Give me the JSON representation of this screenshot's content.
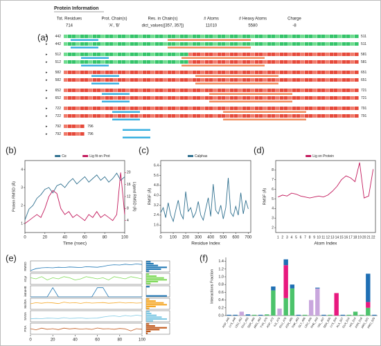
{
  "protein_info": {
    "title": "Protein Information",
    "columns": [
      "Tot. Residues",
      "Prot. Chain(s)",
      "Res. in Chain(s)",
      "# Atoms",
      "# Heavy Atoms",
      "Charge"
    ],
    "values": [
      "714",
      "'A', 'B'",
      "dict_values([357, 357])",
      "11010",
      "5580",
      "-8"
    ],
    "row_start": [
      442,
      512,
      582,
      652,
      722,
      792
    ],
    "row_end": [
      511,
      581,
      651,
      721,
      791,
      796
    ]
  },
  "panel_labels": [
    "(a)",
    "(b)",
    "(c)",
    "(d)",
    "(e)",
    "(f)"
  ],
  "chart_data": [
    {
      "type": "line",
      "xlabel": "Time (nsec)",
      "ylabel": "Protein RMSD (Å)",
      "y2label": "Ligand RMSD (Å)",
      "x": [
        0,
        4,
        8,
        12,
        16,
        20,
        24,
        28,
        32,
        36,
        40,
        44,
        48,
        52,
        56,
        60,
        64,
        68,
        72,
        76,
        80,
        84,
        88,
        92,
        96,
        100
      ],
      "xlim": [
        0,
        100
      ],
      "xticks": [
        0,
        20,
        40,
        60,
        80,
        100
      ],
      "ylim": [
        0.5,
        4.5
      ],
      "yticks": [
        1,
        2,
        3,
        4
      ],
      "y2lim": [
        0,
        24
      ],
      "y2ticks": [
        4,
        8,
        12,
        16,
        20
      ],
      "series": [
        {
          "name": "Cα",
          "color": "#2e6f8e",
          "values": [
            1.2,
            1.8,
            2.0,
            2.4,
            2.6,
            2.9,
            3.0,
            2.7,
            3.1,
            3.2,
            3.0,
            3.3,
            3.5,
            3.2,
            3.4,
            3.6,
            3.3,
            3.5,
            3.7,
            3.4,
            3.6,
            3.3,
            3.5,
            3.8,
            3.4,
            3.6
          ]
        },
        {
          "name": "Lig fit on Prot",
          "color": "#c2185b",
          "axis": "y2",
          "values": [
            3,
            4,
            5,
            6,
            5,
            8,
            12,
            14,
            13,
            8,
            6,
            7,
            5,
            6,
            5,
            4,
            6,
            5,
            7,
            5,
            6,
            5,
            4,
            6,
            20,
            6
          ]
        }
      ]
    },
    {
      "type": "line",
      "xlabel": "Residue Index",
      "ylabel": "RMSF (Å)",
      "x": [
        0,
        20,
        40,
        60,
        80,
        100,
        120,
        140,
        160,
        180,
        200,
        220,
        240,
        260,
        280,
        300,
        320,
        340,
        360,
        380,
        400,
        420,
        440,
        460,
        480,
        500,
        520,
        540,
        560,
        580,
        600,
        620,
        640,
        660,
        680,
        700
      ],
      "xlim": [
        0,
        720
      ],
      "xticks": [
        0,
        100,
        200,
        300,
        400,
        500,
        600,
        700
      ],
      "ylim": [
        1,
        6.8
      ],
      "yticks": [
        1.6,
        2.4,
        3.2,
        {
          "value": 4,
          "label": "4.0"
        },
        4.8,
        5.6,
        6.4
      ],
      "series": [
        {
          "name": "Calphas",
          "color": "#2e6f8e",
          "values": [
            2.6,
            3.0,
            2.2,
            3.4,
            2.4,
            1.9,
            2.8,
            3.6,
            2.5,
            2.1,
            4.3,
            2.7,
            3.0,
            2.2,
            2.6,
            3.5,
            2.4,
            2.0,
            2.9,
            3.8,
            2.3,
            4.9,
            2.8,
            2.5,
            3.2,
            2.1,
            3.0,
            5.4,
            2.6,
            2.3,
            3.1,
            2.4,
            4.2,
            2.5,
            3.6,
            2.9
          ]
        }
      ]
    },
    {
      "type": "line",
      "xlabel": "Atom Index",
      "ylabel": "RMSF (Å)",
      "categories": [
        "1",
        "2",
        "3",
        "4",
        "5",
        "6",
        "7",
        "8",
        "9",
        "10",
        "11",
        "12",
        "13",
        "14",
        "15",
        "16",
        "17",
        "18",
        "19",
        "20",
        "21",
        "22"
      ],
      "ylim": [
        1.5,
        9
      ],
      "yticks": [
        2,
        3,
        4,
        5,
        6,
        7,
        8
      ],
      "series": [
        {
          "name": "Lig on Protein",
          "color": "#c2185b",
          "values": [
            5.2,
            5.4,
            5.3,
            5.6,
            5.5,
            5.3,
            5.2,
            5.1,
            5.2,
            5.3,
            5.2,
            5.4,
            5.8,
            6.3,
            7,
            7.4,
            7.2,
            6.8,
            8.8,
            5.1,
            5.3,
            8.1
          ]
        }
      ]
    },
    {
      "type": "stacked-line",
      "x": [
        0,
        5,
        10,
        15,
        20,
        25,
        30,
        35,
        40,
        45,
        50,
        55,
        60,
        65,
        70,
        75,
        80,
        85,
        90,
        95,
        100
      ],
      "xlim": [
        0,
        100
      ],
      "xticks": [
        0,
        20,
        40,
        60,
        80,
        100
      ],
      "series": [
        {
          "name": "RMSD",
          "color": "#1f77b4",
          "ylim": [
            0,
            4
          ],
          "values": [
            0.5,
            1.2,
            1.5,
            1.6,
            1.5,
            1.7,
            1.6,
            1.8,
            1.7,
            1.6,
            1.9,
            1.8,
            1.7,
            2.0,
            2.4,
            2.6,
            2.5,
            2.8,
            2.6,
            2.9,
            2.7
          ],
          "hist": [
            2,
            10,
            14,
            8,
            5,
            3
          ]
        },
        {
          "name": "rGyr",
          "color": "#7ed957",
          "ylim": [
            3.5,
            4.5
          ],
          "values": [
            4.1,
            4.0,
            4.2,
            3.9,
            4.1,
            4.0,
            4.2,
            4.1,
            3.9,
            4.0,
            4.2,
            4.1,
            4.0,
            4.1,
            3.9,
            4.2,
            4.1,
            4.0,
            4.2,
            4.1,
            4.0
          ],
          "hist": [
            3,
            8,
            14,
            12,
            7,
            2
          ]
        },
        {
          "name": "intraHB",
          "color": "#1f77b4",
          "ylim": [
            0,
            1.2
          ],
          "values": [
            0,
            0,
            0,
            0,
            1,
            0,
            0,
            0,
            0,
            0,
            0,
            0,
            1,
            1,
            0,
            0,
            0,
            0,
            0,
            0,
            0
          ],
          "hist": [
            18,
            0,
            0,
            0,
            0,
            3
          ]
        },
        {
          "name": "MolSA",
          "color": "#f5a623",
          "ylim": [
            300,
            400
          ],
          "values": [
            350,
            360,
            355,
            362,
            358,
            352,
            365,
            357,
            360,
            354,
            362,
            356,
            359,
            361,
            355,
            358,
            363,
            357,
            360,
            356,
            359
          ],
          "hist": [
            2,
            6,
            13,
            11,
            6,
            2
          ]
        },
        {
          "name": "SASA",
          "color": "#7ec8e3",
          "ylim": [
            0,
            300
          ],
          "values": [
            80,
            90,
            85,
            100,
            95,
            88,
            110,
            92,
            98,
            105,
            90,
            95,
            100,
            130,
            150,
            160,
            140,
            170,
            150,
            180,
            160
          ],
          "hist": [
            4,
            12,
            9,
            6,
            3,
            2
          ]
        },
        {
          "name": "PSA",
          "color": "#c0571a",
          "ylim": [
            100,
            200
          ],
          "values": [
            150,
            140,
            155,
            145,
            150,
            142,
            155,
            148,
            152,
            146,
            150,
            144,
            156,
            148,
            150,
            145,
            152,
            148,
            130,
            150,
            145
          ],
          "hist": [
            1,
            3,
            9,
            14,
            6,
            2
          ]
        }
      ]
    },
    {
      "type": "stacked-bar",
      "ylabel": "Interactions Fraction",
      "categories": [
        "ASP_445",
        "LYS_448",
        "LEU_452",
        "GLU_455",
        "SER_460",
        "ARG_463",
        "TYR_470",
        "ASP_472",
        "ILE_475",
        "GLU_478",
        "ASN_480",
        "THR_483",
        "GLY_486",
        "LEU_490",
        "PHE_493",
        "VAL_497",
        "SER_500",
        "LYS_504",
        "ALA_507",
        "GLN_510",
        "HIS_514",
        "ASN_518",
        "ARG_521",
        "PRO_525"
      ],
      "ylim": [
        0,
        1.5
      ],
      "yticks": [
        {
          "value": 0,
          "label": "0.0"
        },
        0.2,
        0.4,
        0.6,
        0.8,
        {
          "value": 1,
          "label": "1.0"
        },
        1.2,
        1.4
      ],
      "series": [
        {
          "color": "#4cc36b",
          "values": [
            0,
            0,
            0,
            0,
            0.02,
            0,
            0.03,
            0.65,
            0,
            0.45,
            0.7,
            0,
            0.02,
            0,
            0,
            0,
            0.02,
            0,
            0,
            0.02,
            0.1,
            0.02,
            0.2,
            0
          ]
        },
        {
          "color": "#c9a7dd",
          "values": [
            0,
            0,
            0.1,
            0,
            0,
            0,
            0,
            0,
            0.18,
            0,
            0,
            0,
            0,
            0.4,
            0.7,
            0,
            0,
            0,
            0,
            0,
            0,
            0,
            0,
            0
          ]
        },
        {
          "color": "#e8197f",
          "values": [
            0,
            0,
            0,
            0,
            0,
            0,
            0,
            0,
            0,
            0.85,
            0,
            0,
            0,
            0,
            0,
            0,
            0,
            0.58,
            0,
            0,
            0,
            0,
            0.15,
            0
          ]
        },
        {
          "color": "#1f6fb4",
          "values": [
            0.02,
            0.02,
            0,
            0.03,
            0,
            0.02,
            0,
            0.1,
            0,
            0.15,
            0.1,
            0.02,
            0,
            0,
            0.02,
            0.02,
            0,
            0,
            0.02,
            0,
            0,
            0,
            0.73,
            0.02
          ]
        }
      ]
    }
  ]
}
